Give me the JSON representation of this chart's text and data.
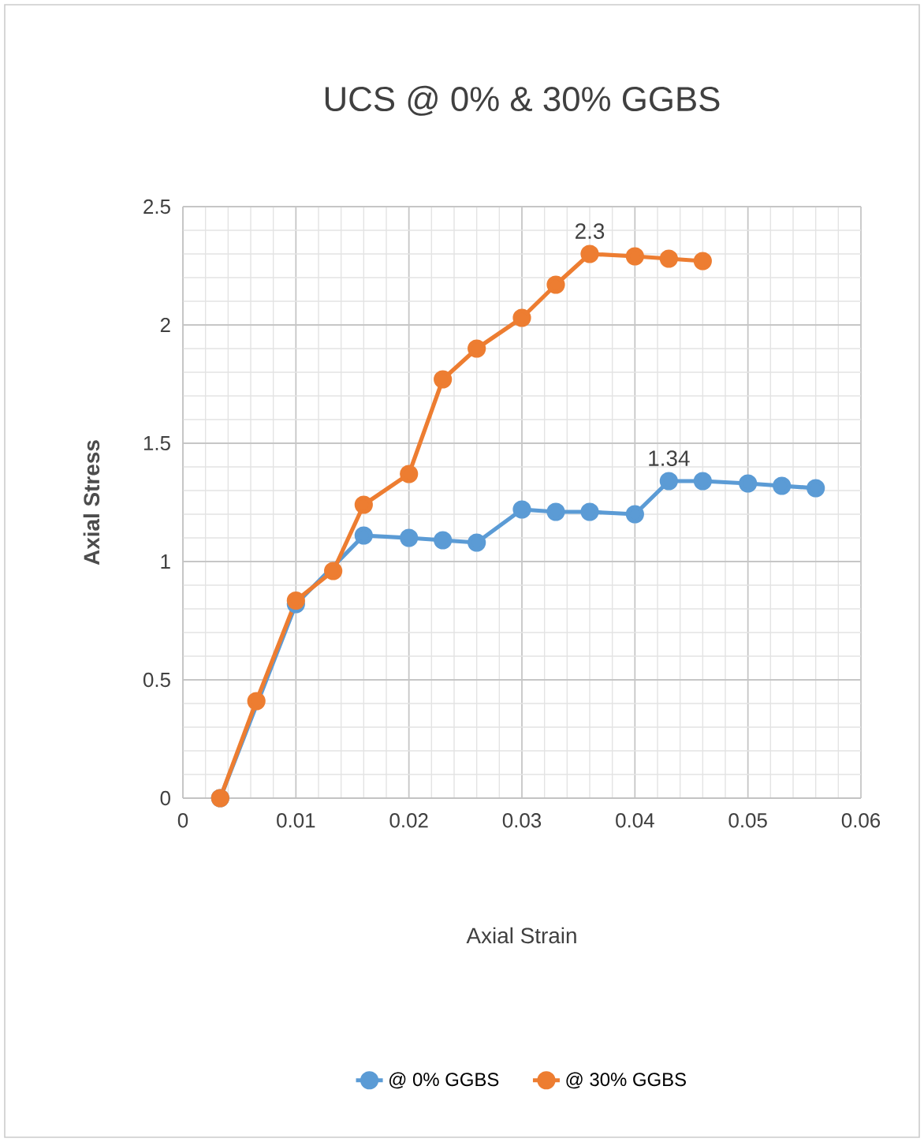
{
  "chart_data": {
    "type": "line",
    "title": "UCS @ 0% & 30% GGBS",
    "xlabel": "Axial Strain",
    "ylabel": "Axial Stress",
    "xlim": [
      0,
      0.06
    ],
    "ylim": [
      0,
      2.5
    ],
    "xticks": [
      0,
      0.01,
      0.02,
      0.03,
      0.04,
      0.05,
      0.06
    ],
    "yticks": [
      0,
      0.5,
      1,
      1.5,
      2,
      2.5
    ],
    "grid": true,
    "legend": "bottom",
    "marker": "circle",
    "series": [
      {
        "name": "@ 0% GGBS",
        "color": "#5b9bd5",
        "x": [
          0.0033,
          0.0065,
          0.01,
          0.0133,
          0.016,
          0.02,
          0.023,
          0.026,
          0.03,
          0.033,
          0.036,
          0.04,
          0.043,
          0.046,
          0.05,
          0.053,
          0.056
        ],
        "values": [
          0,
          null,
          0.82,
          null,
          1.11,
          1.1,
          1.09,
          1.08,
          1.22,
          1.21,
          1.21,
          1.2,
          1.34,
          1.34,
          1.33,
          1.32,
          1.31
        ]
      },
      {
        "name": "@ 30% GGBS",
        "color": "#ed7d31",
        "x": [
          0.0033,
          0.0065,
          0.01,
          0.0133,
          0.016,
          0.02,
          0.023,
          0.026,
          0.03,
          0.033,
          0.036,
          0.04,
          0.043,
          0.046
        ],
        "values": [
          0,
          0.41,
          0.835,
          0.96,
          1.24,
          1.37,
          1.77,
          1.9,
          2.03,
          2.17,
          2.3,
          2.29,
          2.28,
          2.27
        ]
      }
    ],
    "annotations": [
      {
        "text": "2.3",
        "x": 0.036,
        "y": 2.3
      },
      {
        "text": "1.34",
        "x": 0.043,
        "y": 1.34
      }
    ]
  }
}
